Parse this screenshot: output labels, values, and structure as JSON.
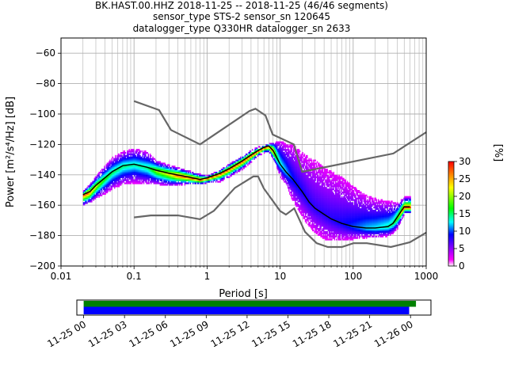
{
  "title_lines": [
    "BK.HAST.00.HHZ   2018-11-25 -- 2018-11-25  (46/46 segments)",
    "sensor_type STS-2 sensor_sn 120645",
    "datalogger_type Q330HR datalogger_sn 2633"
  ],
  "chart_data": [
    {
      "type": "heatmap",
      "subtype": "probabilistic power spectral density",
      "xlabel": "Period [s]",
      "ylabel": "Power [m²/s⁴/Hz] [dB]",
      "x_scale": "log",
      "xlim": [
        0.01,
        1000
      ],
      "ylim": [
        -200,
        -50
      ],
      "x_ticks": [
        {
          "value": 0.01,
          "label": "0.01"
        },
        {
          "value": 0.1,
          "label": "0.1"
        },
        {
          "value": 1,
          "label": "1"
        },
        {
          "value": 10,
          "label": "10"
        },
        {
          "value": 100,
          "label": "100"
        },
        {
          "value": 1000,
          "label": "1000"
        }
      ],
      "y_ticks": [
        -60,
        -80,
        -100,
        -120,
        -140,
        -160,
        -180,
        -200
      ],
      "grid": true,
      "colorbar": {
        "label": "[%]",
        "range": [
          0,
          30
        ],
        "ticks": [
          0,
          5,
          10,
          15,
          20,
          25,
          30
        ],
        "colormap": [
          "#ffffff",
          "#ff00ff",
          "#0000ff",
          "#00ffff",
          "#00ff00",
          "#ffff00",
          "#ff8000",
          "#ff0000"
        ]
      },
      "mean_curve": {
        "color": "#000000",
        "period": [
          0.02,
          0.025,
          0.03,
          0.04,
          0.05,
          0.07,
          0.1,
          0.15,
          0.2,
          0.3,
          0.5,
          0.8,
          1,
          1.5,
          2,
          3,
          4,
          5,
          6,
          7,
          8,
          10,
          12,
          15,
          20,
          25,
          30,
          40,
          50,
          70,
          100,
          150,
          200,
          300,
          350,
          400,
          500,
          600
        ],
        "power": [
          -153,
          -151,
          -147,
          -142,
          -138,
          -134,
          -133,
          -135,
          -137,
          -139,
          -141,
          -143,
          -142,
          -139,
          -136,
          -131,
          -127,
          -124,
          -122,
          -121,
          -124,
          -133,
          -138,
          -143,
          -151,
          -158,
          -162,
          -166,
          -169,
          -172,
          -174,
          -175,
          -175,
          -174,
          -172,
          -168,
          -161,
          -161
        ]
      },
      "density_band": {
        "period": [
          0.02,
          0.025,
          0.03,
          0.04,
          0.05,
          0.07,
          0.1,
          0.15,
          0.2,
          0.3,
          0.5,
          0.8,
          1,
          1.5,
          2,
          3,
          4,
          5,
          6,
          7,
          8,
          10,
          12,
          15,
          20,
          25,
          30,
          40,
          50,
          70,
          100,
          150,
          200,
          300,
          350,
          400,
          500,
          600
        ],
        "upper": [
          -150,
          -145,
          -140,
          -133,
          -128,
          -124,
          -122,
          -124,
          -130,
          -133,
          -136,
          -139,
          -140,
          -136,
          -132,
          -127,
          -123,
          -121,
          -120,
          -119,
          -118,
          -117,
          -119,
          -120,
          -125,
          -128,
          -130,
          -135,
          -137,
          -141,
          -147,
          -153,
          -155,
          -157,
          -157,
          -158,
          -154,
          -154
        ],
        "lower": [
          -160,
          -158,
          -155,
          -152,
          -149,
          -146,
          -145,
          -146,
          -146,
          -147,
          -146,
          -146,
          -145,
          -144,
          -141,
          -136,
          -131,
          -127,
          -125,
          -125,
          -130,
          -141,
          -147,
          -158,
          -168,
          -174,
          -178,
          -182,
          -183,
          -183,
          -182,
          -181,
          -181,
          -180,
          -178,
          -175,
          -165,
          -165
        ]
      },
      "noise_models": [
        {
          "name": "upper",
          "color": "#666666",
          "period": [
            0.1,
            0.22,
            0.32,
            0.8,
            3.8,
            4.6,
            6.3,
            7.9,
            15.4,
            20,
            354.8,
            1000
          ],
          "power": [
            -91.5,
            -97.4,
            -110.5,
            -120,
            -98,
            -96.5,
            -101,
            -113.5,
            -120,
            -138,
            -126,
            -112
          ]
        },
        {
          "name": "lower",
          "color": "#666666",
          "period": [
            0.1,
            0.17,
            0.4,
            0.8,
            1.24,
            2.4,
            4.3,
            5,
            6,
            10,
            12,
            15.6,
            21.9,
            31.6,
            45,
            70,
            101,
            154,
            328,
            600,
            1000
          ],
          "power": [
            -168,
            -166.7,
            -166.7,
            -169.2,
            -163.7,
            -148.6,
            -141.1,
            -141.1,
            -149,
            -163.8,
            -166.2,
            -162.1,
            -177.5,
            -185,
            -187.5,
            -187.5,
            -185,
            -185,
            -187.5,
            -184.4,
            -178
          ]
        }
      ]
    },
    {
      "type": "bar",
      "subtype": "data availability timeline",
      "x_ticks": [
        "11-25 00",
        "11-25 03",
        "11-25 06",
        "11-25 09",
        "11-25 12",
        "11-25 15",
        "11-25 18",
        "11-25 21",
        "11-26 00"
      ],
      "x_range_hours": [
        -0.5,
        25.5
      ],
      "series": [
        {
          "color": "#008000",
          "start_hour": 0,
          "end_hour": 24.4
        },
        {
          "color": "#0000ff",
          "start_hour": 0,
          "end_hour": 23.9
        }
      ]
    }
  ]
}
